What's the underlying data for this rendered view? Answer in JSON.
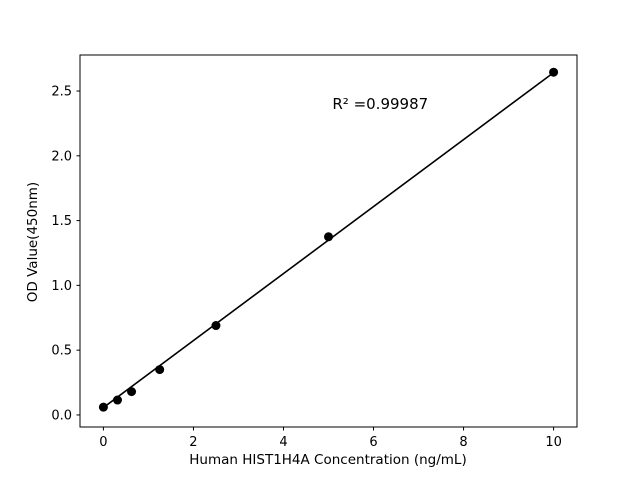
{
  "chart_data": {
    "type": "scatter",
    "title": "",
    "xlabel": "Human HIST1H4A Concentration (ng/mL)",
    "ylabel": "OD Value(450nm)",
    "annotation": "R² =0.99987",
    "annotation_pos": {
      "x": 6.15,
      "y": 2.4
    },
    "points": [
      {
        "x": 0,
        "y": 0.06
      },
      {
        "x": 0.313,
        "y": 0.115
      },
      {
        "x": 0.625,
        "y": 0.18
      },
      {
        "x": 1.25,
        "y": 0.35
      },
      {
        "x": 2.5,
        "y": 0.69
      },
      {
        "x": 5,
        "y": 1.375
      },
      {
        "x": 10,
        "y": 2.645
      }
    ],
    "fit_line": {
      "slope": 0.2585,
      "intercept": 0.057,
      "x_start": 0,
      "x_end": 10
    },
    "xlim": [
      -0.52,
      10.52
    ],
    "ylim": [
      -0.093,
      2.778
    ],
    "xticks": [
      {
        "value": 0,
        "label": "0"
      },
      {
        "value": 2,
        "label": "2"
      },
      {
        "value": 4,
        "label": "4"
      },
      {
        "value": 6,
        "label": "6"
      },
      {
        "value": 8,
        "label": "8"
      },
      {
        "value": 10,
        "label": "10"
      }
    ],
    "yticks": [
      {
        "value": 0.0,
        "label": "0.0"
      },
      {
        "value": 0.5,
        "label": "0.5"
      },
      {
        "value": 1.0,
        "label": "1.0"
      },
      {
        "value": 1.5,
        "label": "1.5"
      },
      {
        "value": 2.0,
        "label": "2.0"
      },
      {
        "value": 2.5,
        "label": "2.5"
      }
    ],
    "legend": null,
    "grid": false,
    "colors": {
      "background": "#ffffff",
      "point": "#000000",
      "line": "#000000",
      "axis": "#000000",
      "text": "#000000"
    },
    "marker_radius": 4.5
  }
}
